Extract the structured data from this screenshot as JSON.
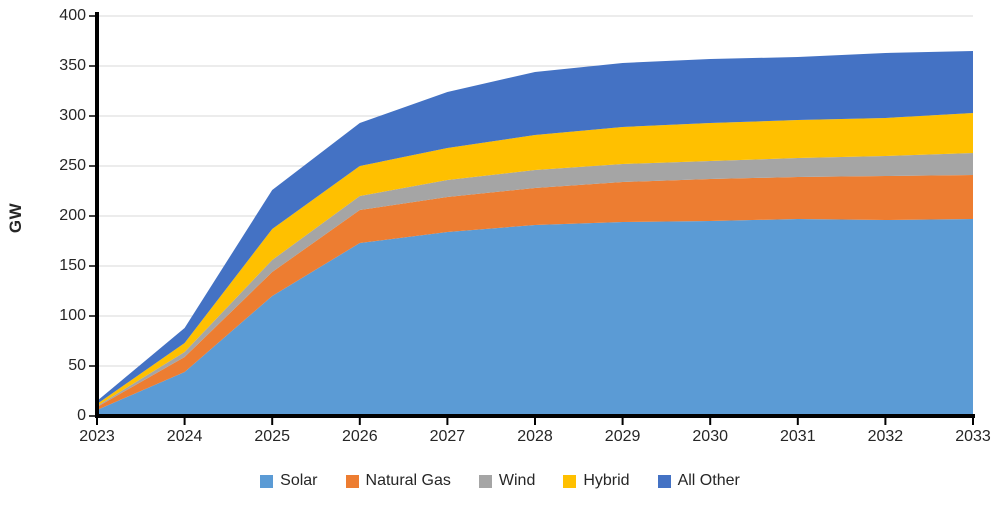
{
  "chart_data": {
    "type": "area",
    "stacked": true,
    "title": "",
    "xlabel": "",
    "ylabel": "GW",
    "x": [
      2023,
      2024,
      2025,
      2026,
      2027,
      2028,
      2029,
      2030,
      2031,
      2032,
      2033
    ],
    "x_tick_labels": [
      "2023",
      "2024",
      "2025",
      "2026",
      "2027",
      "2028",
      "2029",
      "2030",
      "2031",
      "2032",
      "2033"
    ],
    "series": [
      {
        "name": "Solar",
        "color": "#5B9BD5",
        "values": [
          6,
          44,
          120,
          173,
          184,
          191,
          194,
          195,
          197,
          196,
          197
        ]
      },
      {
        "name": "Natural Gas",
        "color": "#ED7D31",
        "values": [
          3,
          15,
          24,
          33,
          35,
          37,
          40,
          42,
          42,
          44,
          44
        ]
      },
      {
        "name": "Wind",
        "color": "#A5A5A5",
        "values": [
          1,
          5,
          12,
          14,
          17,
          18,
          18,
          18,
          19,
          20,
          22
        ]
      },
      {
        "name": "Hybrid",
        "color": "#FFC000",
        "values": [
          2,
          9,
          31,
          30,
          32,
          35,
          37,
          38,
          38,
          38,
          40
        ]
      },
      {
        "name": "All Other",
        "color": "#4472C4",
        "values": [
          3,
          15,
          39,
          43,
          56,
          63,
          64,
          64,
          63,
          65,
          62
        ]
      }
    ],
    "totals": [
      15,
      88,
      226,
      293,
      324,
      344,
      353,
      357,
      359,
      363,
      365
    ],
    "ylim": [
      0,
      400
    ],
    "ytick_step": 50,
    "y_tick_labels": [
      "0",
      "50",
      "100",
      "150",
      "200",
      "250",
      "300",
      "350",
      "400"
    ],
    "grid": "horizontal",
    "grid_color": "#D9D9D9",
    "axis_color": "#000000",
    "text_color": "#262626",
    "legend_position": "bottom"
  }
}
